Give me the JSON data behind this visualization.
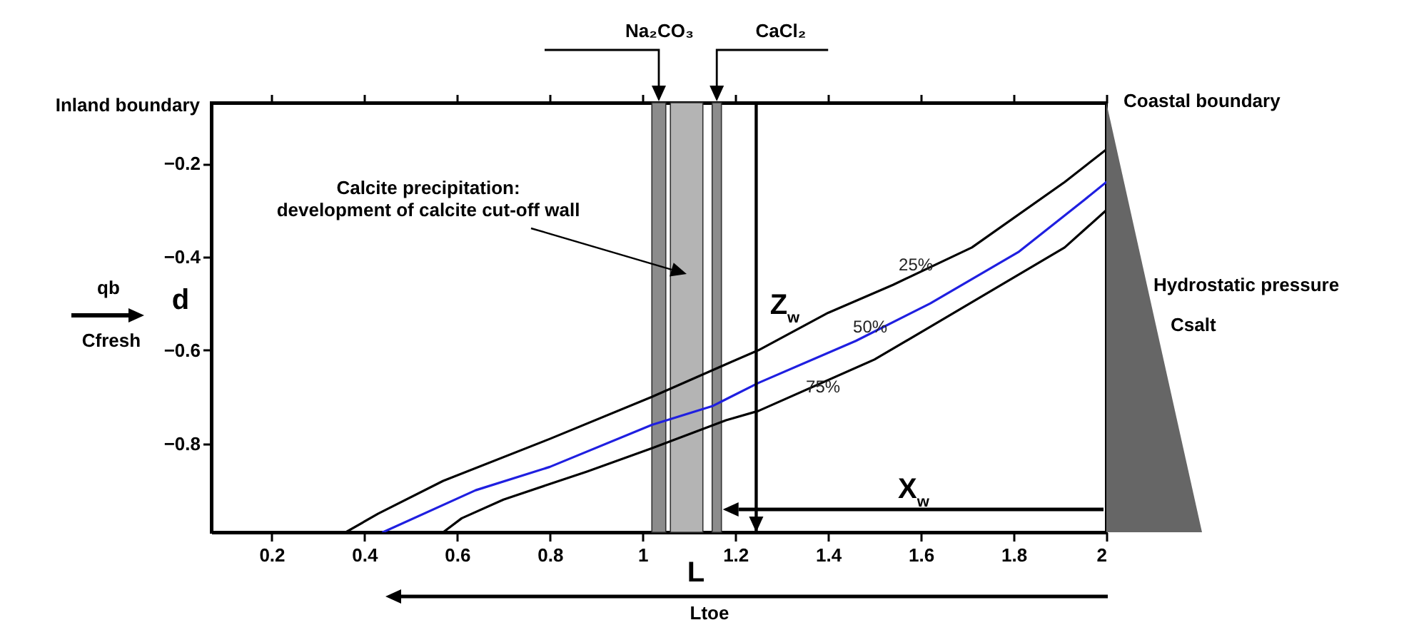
{
  "chart_data": {
    "type": "line",
    "xlabel": "L",
    "ylabel": "d",
    "xlim": [
      0.07,
      2
    ],
    "xticks": [
      0.2,
      0.4,
      0.6,
      0.8,
      1,
      1.2,
      1.4,
      1.6,
      1.8,
      2
    ],
    "ylim": [
      -0.99,
      -0.07
    ],
    "yticks": [
      -0.2,
      -0.4,
      -0.6,
      -0.8
    ],
    "series": [
      {
        "name": "25%",
        "color": "#000000",
        "x": [
          0.36,
          0.43,
          0.57,
          0.8,
          1.02,
          1.18,
          1.25,
          1.4,
          1.54,
          1.71,
          1.91,
          2.0
        ],
        "values": [
          -0.99,
          -0.95,
          -0.88,
          -0.79,
          -0.7,
          -0.63,
          -0.6,
          -0.52,
          -0.46,
          -0.38,
          -0.24,
          -0.17
        ]
      },
      {
        "name": "50%",
        "color": "#1f1fe0",
        "x": [
          0.44,
          0.64,
          0.8,
          1.02,
          1.15,
          1.25,
          1.46,
          1.62,
          1.81,
          1.95,
          2.0
        ],
        "values": [
          -0.99,
          -0.9,
          -0.85,
          -0.76,
          -0.72,
          -0.67,
          -0.58,
          -0.5,
          -0.39,
          -0.28,
          -0.24
        ]
      },
      {
        "name": "75%",
        "color": "#000000",
        "x": [
          0.57,
          0.61,
          0.7,
          0.79,
          0.88,
          1.02,
          1.18,
          1.25,
          1.5,
          1.62,
          1.91,
          2.0
        ],
        "values": [
          -0.99,
          -0.96,
          -0.92,
          -0.89,
          -0.86,
          -0.81,
          -0.75,
          -0.73,
          -0.62,
          -0.55,
          -0.38,
          -0.3
        ]
      }
    ],
    "bands": [
      {
        "axis": "x",
        "from": 1.02,
        "to": 1.05,
        "color": "#8c8c8c"
      },
      {
        "axis": "x",
        "from": 1.06,
        "to": 1.13,
        "label": "Calcite precipitation:\ndevelopment of calcite cut-off wall",
        "color": "#b4b4b4"
      },
      {
        "axis": "x",
        "from": 1.15,
        "to": 1.17,
        "color": "#8c8c8c"
      }
    ],
    "ref_lines": [
      {
        "axis": "x",
        "value": 1.245,
        "label": "Z$_{w}$",
        "color": "#000000",
        "line_style": "solid"
      }
    ],
    "annotations": [
      "Inland boundary",
      "Coastal boundary",
      "Hydrostatic pressure",
      "Csalt",
      "qb",
      "Cfresh",
      "Ltoe",
      "X$_{w}$",
      "Na₂CO₃",
      "CaCl₂"
    ],
    "line_style": "solid",
    "marker": "none",
    "grid": false,
    "legend": false
  }
}
